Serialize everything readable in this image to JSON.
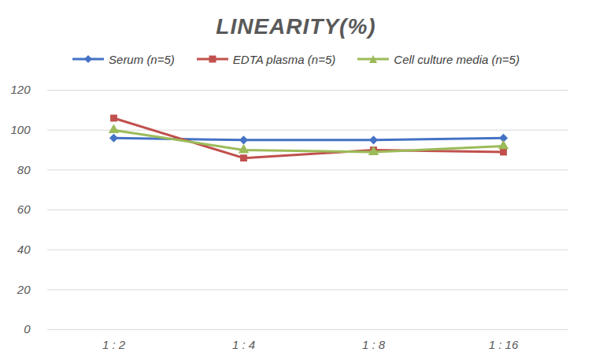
{
  "chart_data": {
    "type": "line",
    "title": "LINEARITY(%)",
    "categories": [
      "1 : 2",
      "1 : 4",
      "1 : 8",
      "1 : 16"
    ],
    "series": [
      {
        "name": "Serum (n=5)",
        "color": "#4472c4",
        "marker": "diamond",
        "values": [
          96,
          95,
          95,
          96
        ]
      },
      {
        "name": "EDTA plasma (n=5)",
        "color": "#c0504d",
        "marker": "square",
        "values": [
          106,
          86,
          90,
          89
        ]
      },
      {
        "name": "Cell culture media (n=5)",
        "color": "#9bbb59",
        "marker": "triangle",
        "values": [
          100,
          90,
          89,
          92
        ]
      }
    ],
    "ylim": [
      0,
      120
    ],
    "yticks": [
      0,
      20,
      40,
      60,
      80,
      100,
      120
    ],
    "grid": true,
    "legend": "top"
  }
}
